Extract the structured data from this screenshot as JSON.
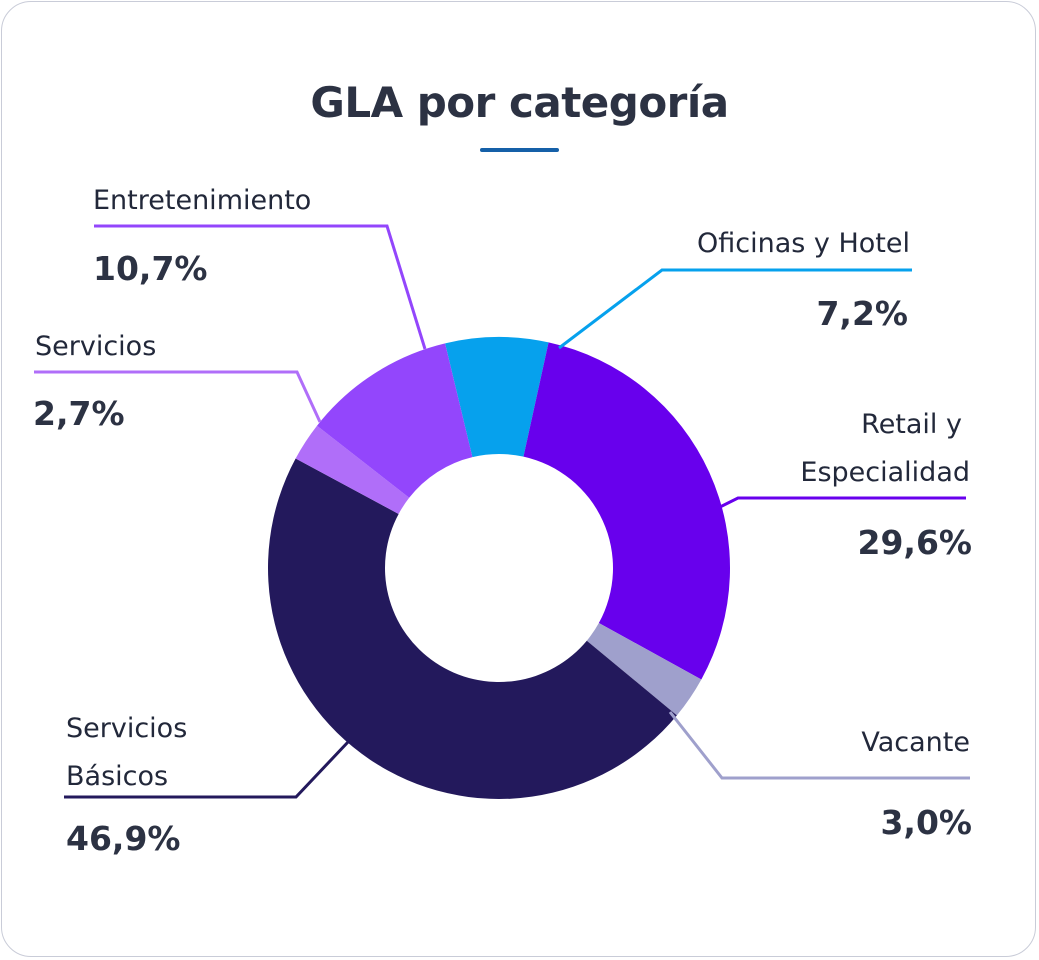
{
  "chart_data": {
    "type": "pie",
    "title": "GLA por categoría",
    "slices": [
      {
        "label": "Oficinas y Hotel",
        "value_text": "7,2%",
        "value": 7.2,
        "color": "#06a1ed"
      },
      {
        "label": "Retail y Especialidad",
        "value_text": "29,6%",
        "value": 29.6,
        "color": "#6800ed"
      },
      {
        "label": "Vacante",
        "value_text": "3,0%",
        "value": 3.0,
        "color": "#9fa0cc"
      },
      {
        "label": "Servicios Básicos",
        "value_text": "46,9%",
        "value": 46.9,
        "color": "#23195c"
      },
      {
        "label": "Servicios",
        "value_text": "2,7%",
        "value": 2.7,
        "color": "#b06ef9"
      },
      {
        "label": "Entretenimiento",
        "value_text": "10,7%",
        "value": 10.7,
        "color": "#9346fc"
      }
    ]
  },
  "labels": {
    "oficinas": "Oficinas y Hotel",
    "retail_line1": "Retail y",
    "retail_line2": "Especialidad",
    "vacante": "Vacante",
    "basicos_line1": "Servicios",
    "basicos_line2": "Básicos",
    "servicios": "Servicios",
    "entretenimiento": "Entretenimiento"
  }
}
